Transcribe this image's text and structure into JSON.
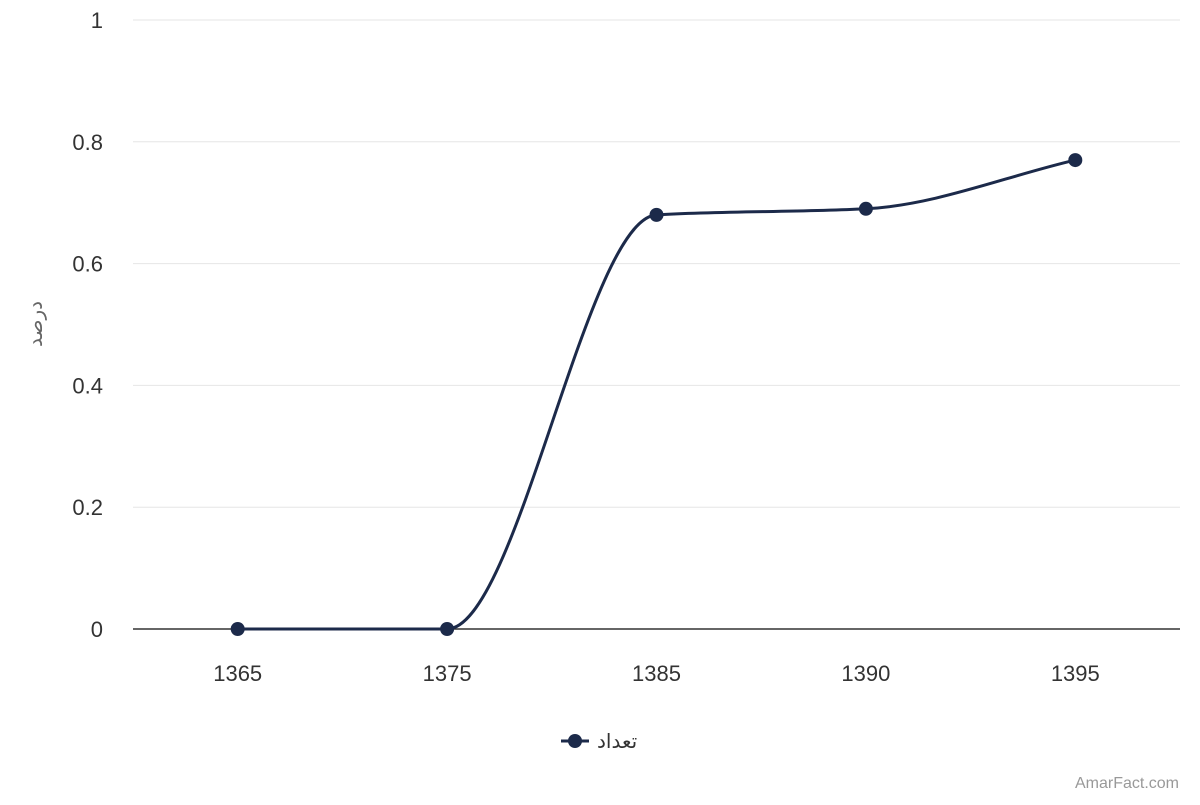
{
  "chart_data": {
    "type": "line",
    "title": "",
    "xlabel": "",
    "ylabel": "درصد",
    "categories": [
      "1365",
      "1375",
      "1385",
      "1390",
      "1395"
    ],
    "series": [
      {
        "name": "تعداد",
        "values": [
          0,
          0,
          0.68,
          0.69,
          0.77
        ],
        "color": "#1c2a4a"
      }
    ],
    "ylim": [
      0,
      1
    ],
    "yticks": [
      "0",
      "0.2",
      "0.4",
      "0.6",
      "0.8",
      "1"
    ],
    "grid": true,
    "smooth": true,
    "legend_position": "bottom-center"
  },
  "credit": "AmarFact.com"
}
